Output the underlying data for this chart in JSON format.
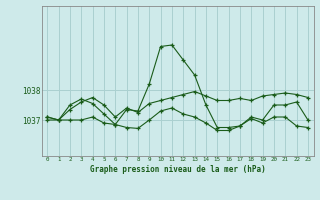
{
  "title": "Graphe pression niveau de la mer (hPa)",
  "background_color": "#ceeaea",
  "grid_color": "#aad0d0",
  "line_color": "#1a5c1a",
  "x_labels": [
    "0",
    "1",
    "2",
    "3",
    "4",
    "5",
    "6",
    "7",
    "8",
    "9",
    "10",
    "11",
    "12",
    "13",
    "14",
    "15",
    "16",
    "17",
    "18",
    "19",
    "20",
    "21",
    "22",
    "23"
  ],
  "ylim": [
    1035.8,
    1040.8
  ],
  "yticks": [
    1037,
    1038
  ],
  "series1": [
    1037.1,
    1037.0,
    1037.35,
    1037.6,
    1037.75,
    1037.5,
    1037.1,
    1037.4,
    1037.25,
    1037.55,
    1037.65,
    1037.75,
    1037.85,
    1037.95,
    1037.8,
    1037.65,
    1037.65,
    1037.72,
    1037.65,
    1037.8,
    1037.85,
    1037.9,
    1037.85,
    1037.75
  ],
  "series2": [
    1037.1,
    1037.0,
    1037.5,
    1037.7,
    1037.55,
    1037.2,
    1036.85,
    1037.35,
    1037.3,
    1038.2,
    1039.45,
    1039.5,
    1039.0,
    1038.5,
    1037.5,
    1036.75,
    1036.75,
    1036.8,
    1037.1,
    1037.0,
    1037.5,
    1037.5,
    1037.6,
    1037.0
  ],
  "series3": [
    1037.0,
    1037.0,
    1037.0,
    1037.0,
    1037.1,
    1036.9,
    1036.85,
    1036.75,
    1036.72,
    1037.0,
    1037.3,
    1037.4,
    1037.2,
    1037.1,
    1036.9,
    1036.65,
    1036.65,
    1036.8,
    1037.05,
    1036.9,
    1037.1,
    1037.1,
    1036.8,
    1036.75
  ]
}
